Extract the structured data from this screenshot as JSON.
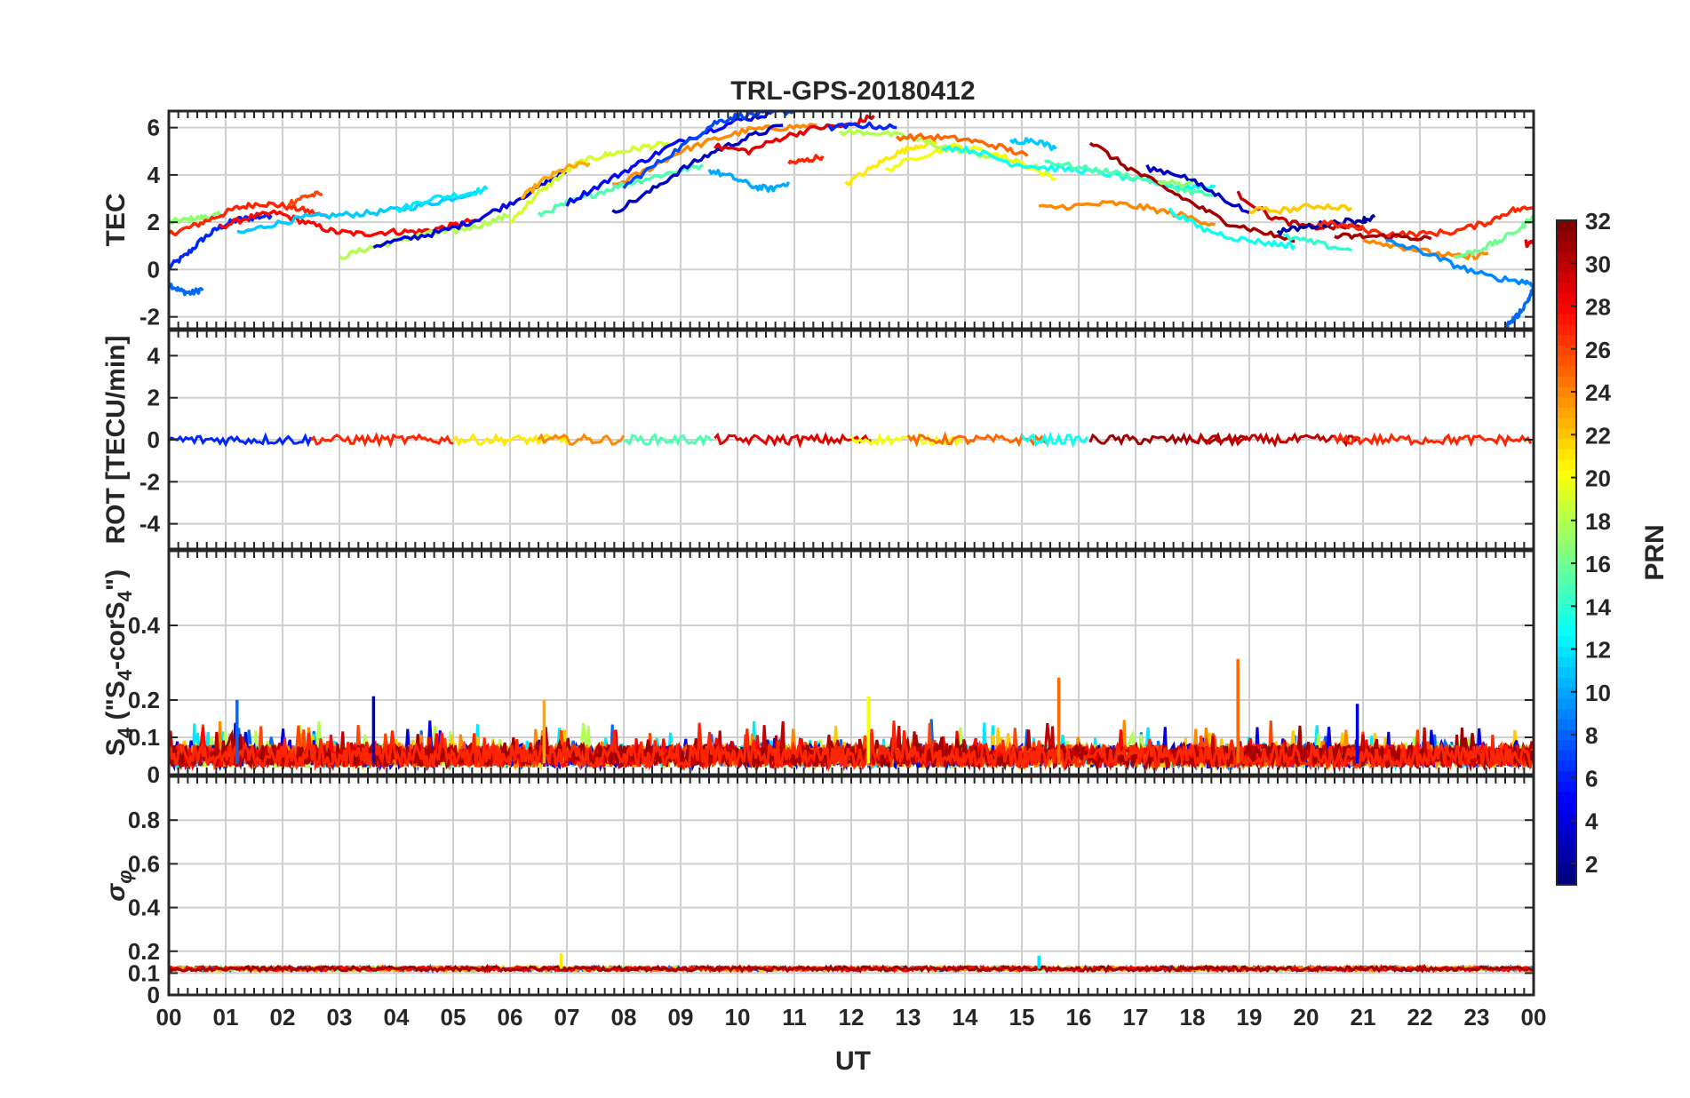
{
  "chart_data": {
    "type": "line",
    "title": "TRL-GPS-20180412",
    "xlabel": "UT",
    "x_tick_labels": [
      "00",
      "01",
      "02",
      "03",
      "04",
      "05",
      "06",
      "07",
      "08",
      "09",
      "10",
      "11",
      "12",
      "13",
      "14",
      "15",
      "16",
      "17",
      "18",
      "19",
      "20",
      "21",
      "22",
      "23",
      "00"
    ],
    "xlim": [
      0,
      24
    ],
    "grid": true,
    "panels": [
      {
        "id": "tec",
        "ylabel": "TEC",
        "ylim": [
          -2.5,
          6.7
        ],
        "yticks": [
          -2,
          0,
          2,
          4,
          6
        ],
        "ytick_labels": [
          "-2",
          "0",
          "2",
          "4",
          "6"
        ]
      },
      {
        "id": "rot",
        "ylabel": "ROT [TECU/min]",
        "ylim": [
          -5.2,
          5.2
        ],
        "yticks": [
          -4,
          -2,
          0,
          2,
          4
        ],
        "ytick_labels": [
          "-4",
          "-2",
          "0",
          "2",
          "4"
        ]
      },
      {
        "id": "s4",
        "ylabel_main": "S",
        "ylabel_sub": "4",
        "ylabel_rest": " (\"S",
        "ylabel_sub2": "4",
        "ylabel_rest2": "-corS",
        "ylabel_sub3": "4",
        "ylabel_end": "\")",
        "ylim": [
          0,
          0.6
        ],
        "yticks": [
          0,
          0.1,
          0.2,
          0.4
        ],
        "ytick_labels": [
          "0",
          "0.1",
          "0.2",
          "0.4"
        ]
      },
      {
        "id": "sigma",
        "ylabel_main": "σ",
        "ylabel_sub": "φ",
        "ylim": [
          0,
          1
        ],
        "yticks": [
          0,
          0.1,
          0.2,
          0.4,
          0.6,
          0.8
        ],
        "ytick_labels": [
          "0",
          "0.1",
          "0.2",
          "0.4",
          "0.6",
          "0.8"
        ]
      }
    ],
    "colorbar": {
      "label": "PRN",
      "range": [
        1,
        32
      ],
      "ticks": [
        2,
        4,
        6,
        8,
        10,
        12,
        14,
        16,
        18,
        20,
        22,
        24,
        26,
        28,
        30,
        32
      ],
      "tick_labels": [
        "2",
        "4",
        "6",
        "8",
        "10",
        "12",
        "14",
        "16",
        "18",
        "20",
        "22",
        "24",
        "26",
        "28",
        "30",
        "32"
      ],
      "colormap": "jet"
    },
    "tec_series": [
      {
        "prn": 6,
        "x": [
          0.0,
          0.3,
          0.6,
          0.9,
          1.2,
          1.5,
          1.8
        ],
        "y": [
          0.1,
          0.6,
          1.3,
          1.8,
          2.1,
          2.2,
          2.3
        ]
      },
      {
        "prn": 8,
        "x": [
          0.0,
          0.2,
          0.4,
          0.6
        ],
        "y": [
          -0.6,
          -0.9,
          -1.0,
          -0.8
        ]
      },
      {
        "prn": 17,
        "x": [
          0.0,
          0.3,
          0.6,
          0.9
        ],
        "y": [
          2.0,
          2.1,
          2.2,
          2.3
        ]
      },
      {
        "prn": 27,
        "x": [
          0.0,
          0.4,
          0.8,
          1.2,
          1.6,
          2.0,
          2.4,
          2.8
        ],
        "y": [
          1.5,
          1.8,
          2.2,
          2.6,
          2.8,
          2.7,
          2.5,
          2.2
        ]
      },
      {
        "prn": 26,
        "x": [
          2.1,
          2.4,
          2.7
        ],
        "y": [
          2.8,
          3.1,
          3.2
        ]
      },
      {
        "prn": 28,
        "x": [
          0.9,
          1.4,
          1.9,
          2.4,
          2.9,
          3.4,
          3.9,
          4.4,
          4.9,
          5.4
        ],
        "y": [
          1.8,
          2.2,
          2.4,
          2.0,
          1.6,
          1.5,
          1.6,
          1.6,
          1.8,
          2.1
        ]
      },
      {
        "prn": 11,
        "x": [
          1.2,
          1.8,
          2.4,
          3.0,
          3.6,
          4.2,
          4.8,
          5.4
        ],
        "y": [
          1.5,
          1.9,
          2.2,
          2.3,
          2.4,
          2.6,
          2.9,
          3.3
        ]
      },
      {
        "prn": 12,
        "x": [
          4.0,
          4.6,
          5.2,
          5.6
        ],
        "y": [
          2.5,
          3.0,
          3.2,
          3.4
        ]
      },
      {
        "prn": 18,
        "x": [
          3.0,
          3.5,
          4.0,
          4.5,
          5.0,
          5.5,
          6.0
        ],
        "y": [
          0.5,
          0.9,
          1.2,
          1.5,
          1.6,
          1.9,
          2.3
        ]
      },
      {
        "prn": 4,
        "x": [
          3.6,
          4.2,
          4.8,
          5.4,
          6.0,
          6.6,
          7.0
        ],
        "y": [
          1.0,
          1.3,
          1.6,
          2.1,
          2.8,
          3.6,
          4.2
        ]
      },
      {
        "prn": 19,
        "x": [
          6.0,
          6.4,
          6.8,
          7.2,
          7.6,
          8.0,
          8.4,
          8.8
        ],
        "y": [
          2.0,
          3.0,
          3.8,
          4.5,
          4.8,
          5.0,
          5.2,
          5.3
        ]
      },
      {
        "prn": 23,
        "x": [
          6.2,
          6.6,
          7.0,
          7.4
        ],
        "y": [
          3.0,
          3.8,
          4.3,
          4.5
        ]
      },
      {
        "prn": 24,
        "x": [
          7.8,
          8.4,
          9.0,
          9.6,
          10.2,
          10.8,
          11.4
        ],
        "y": [
          3.5,
          4.2,
          5.0,
          5.5,
          5.9,
          6.0,
          6.1
        ]
      },
      {
        "prn": 15,
        "x": [
          6.5,
          7.0,
          7.5,
          8.0,
          8.5,
          9.0,
          9.4
        ],
        "y": [
          2.3,
          2.8,
          3.2,
          3.6,
          3.9,
          4.2,
          4.4
        ]
      },
      {
        "prn": 5,
        "x": [
          7.0,
          7.6,
          8.2,
          8.8,
          9.4,
          10.0,
          10.6
        ],
        "y": [
          2.8,
          3.6,
          4.4,
          5.2,
          5.8,
          6.3,
          6.6
        ]
      },
      {
        "prn": 3,
        "x": [
          7.8,
          8.4,
          9.0,
          9.6,
          10.2,
          10.8
        ],
        "y": [
          2.4,
          3.2,
          4.2,
          5.0,
          5.6,
          6.1
        ]
      },
      {
        "prn": 7,
        "x": [
          8.0,
          8.6,
          9.2,
          9.6,
          10.0,
          10.5,
          11.0
        ],
        "y": [
          3.5,
          4.5,
          5.5,
          6.2,
          6.5,
          6.6,
          6.7
        ]
      },
      {
        "prn": 10,
        "x": [
          9.5,
          9.9,
          10.3,
          10.6,
          10.9
        ],
        "y": [
          4.2,
          3.9,
          3.5,
          3.4,
          3.7
        ]
      },
      {
        "prn": 29,
        "x": [
          9.6,
          10.2,
          10.8,
          11.4,
          12.0,
          12.4
        ],
        "y": [
          5.2,
          5.0,
          5.6,
          6.0,
          6.1,
          6.5
        ]
      },
      {
        "prn": 27,
        "x": [
          10.9,
          11.2,
          11.5
        ],
        "y": [
          4.5,
          4.6,
          4.8
        ]
      },
      {
        "prn": 21,
        "x": [
          11.9,
          12.3,
          12.7,
          13.1,
          13.5
        ],
        "y": [
          3.6,
          4.2,
          4.8,
          5.2,
          5.4
        ]
      },
      {
        "prn": 18,
        "x": [
          11.8,
          12.4,
          13.0,
          13.6,
          14.2,
          14.8,
          15.3
        ],
        "y": [
          5.8,
          5.8,
          5.6,
          5.2,
          4.9,
          4.6,
          4.3
        ]
      },
      {
        "prn": 6,
        "x": [
          11.6,
          12.2,
          12.8
        ],
        "y": [
          6.0,
          6.1,
          6.0
        ]
      },
      {
        "prn": 20,
        "x": [
          12.6,
          13.2,
          13.8,
          14.4,
          15.0,
          15.6
        ],
        "y": [
          4.2,
          4.8,
          5.2,
          5.0,
          4.5,
          3.8
        ]
      },
      {
        "prn": 25,
        "x": [
          12.8,
          13.4,
          14.0,
          14.6,
          15.1
        ],
        "y": [
          5.6,
          5.6,
          5.5,
          5.2,
          4.8
        ]
      },
      {
        "prn": 11,
        "x": [
          14.8,
          15.2,
          15.6
        ],
        "y": [
          5.4,
          5.5,
          5.1
        ]
      },
      {
        "prn": 13,
        "x": [
          13.6,
          14.2,
          14.8,
          15.4,
          16.0,
          16.6,
          17.2,
          17.8,
          18.4
        ],
        "y": [
          5.2,
          5.0,
          4.5,
          4.3,
          4.2,
          4.0,
          3.7,
          3.5,
          3.5
        ]
      },
      {
        "prn": 15,
        "x": [
          15.4,
          16.0,
          16.6,
          17.2,
          17.8,
          18.4
        ],
        "y": [
          4.6,
          4.3,
          4.1,
          3.8,
          3.4,
          3.1
        ]
      },
      {
        "prn": 24,
        "x": [
          15.3,
          16.0,
          16.6,
          17.2,
          17.8,
          18.4
        ],
        "y": [
          2.6,
          2.7,
          2.8,
          2.6,
          2.3,
          1.9
        ]
      },
      {
        "prn": 31,
        "x": [
          16.2,
          16.8,
          17.4,
          18.0,
          18.6,
          19.2,
          19.8
        ],
        "y": [
          5.4,
          4.4,
          3.6,
          2.8,
          2.0,
          1.6,
          1.2
        ]
      },
      {
        "prn": 3,
        "x": [
          17.2,
          17.8,
          18.4,
          19.0
        ],
        "y": [
          4.3,
          4.0,
          3.2,
          2.4
        ]
      },
      {
        "prn": 13,
        "x": [
          17.6,
          18.2,
          18.8,
          19.4,
          19.8
        ],
        "y": [
          2.5,
          1.7,
          1.3,
          1.1,
          1.0
        ]
      },
      {
        "prn": 17,
        "x": [
          17.4,
          18.0
        ],
        "y": [
          3.7,
          3.6
        ]
      },
      {
        "prn": 30,
        "x": [
          18.8,
          19.4,
          20.0,
          20.6,
          21.0
        ],
        "y": [
          3.2,
          2.2,
          1.8,
          1.8,
          1.8
        ]
      },
      {
        "prn": 22,
        "x": [
          19.0,
          19.6,
          20.2,
          20.8
        ],
        "y": [
          2.5,
          2.5,
          2.7,
          2.6
        ]
      },
      {
        "prn": 2,
        "x": [
          19.5,
          20.0,
          20.5,
          21.0,
          21.2
        ],
        "y": [
          1.6,
          1.8,
          2.0,
          2.1,
          2.2
        ]
      },
      {
        "prn": 14,
        "x": [
          19.6,
          20.2,
          20.8
        ],
        "y": [
          1.4,
          1.1,
          0.8
        ]
      },
      {
        "prn": 27,
        "x": [
          20.2,
          20.8,
          21.4,
          22.0,
          22.6,
          23.2,
          23.6,
          24.0
        ],
        "y": [
          2.0,
          1.8,
          1.5,
          1.5,
          1.6,
          2.0,
          2.5,
          2.6
        ]
      },
      {
        "prn": 24,
        "x": [
          21.0,
          21.6,
          22.2,
          22.8,
          23.2
        ],
        "y": [
          1.3,
          1.0,
          0.7,
          0.5,
          0.7
        ]
      },
      {
        "prn": 31,
        "x": [
          20.5,
          21.0,
          21.6,
          22.2
        ],
        "y": [
          1.4,
          1.4,
          1.4,
          1.3
        ]
      },
      {
        "prn": 9,
        "x": [
          21.4,
          22.0,
          22.6,
          23.2,
          23.8,
          24.0
        ],
        "y": [
          1.2,
          0.8,
          0.2,
          -0.3,
          -0.5,
          -0.6
        ]
      },
      {
        "prn": 16,
        "x": [
          22.6,
          23.0,
          23.4,
          23.8,
          24.0
        ],
        "y": [
          0.5,
          0.8,
          1.2,
          1.8,
          2.3
        ]
      },
      {
        "prn": 8,
        "x": [
          23.5,
          23.7,
          23.9,
          24.0
        ],
        "y": [
          -2.4,
          -2.0,
          -1.3,
          -0.8
        ]
      },
      {
        "prn": 29,
        "x": [
          23.85,
          24.0
        ],
        "y": [
          1.1,
          1.1
        ]
      }
    ],
    "rot_summary": {
      "typical_range": [
        -0.3,
        0.3
      ],
      "description": ""
    },
    "s4_summary": {
      "typical_range": [
        0.02,
        0.12
      ],
      "peaks": [
        {
          "x": 1.2,
          "y": 0.2,
          "prn": 8
        },
        {
          "x": 3.6,
          "y": 0.21,
          "prn": 3
        },
        {
          "x": 6.6,
          "y": 0.2,
          "prn": 23
        },
        {
          "x": 12.3,
          "y": 0.21,
          "prn": 20
        },
        {
          "x": 15.65,
          "y": 0.26,
          "prn": 25
        },
        {
          "x": 18.8,
          "y": 0.31,
          "prn": 25
        },
        {
          "x": 20.9,
          "y": 0.19,
          "prn": 4
        }
      ]
    },
    "sigma_summary": {
      "typical_value": 0.12,
      "peaks": [
        {
          "x": 6.9,
          "y": 0.19,
          "prn": 21
        },
        {
          "x": 15.3,
          "y": 0.18,
          "prn": 12
        }
      ]
    }
  }
}
